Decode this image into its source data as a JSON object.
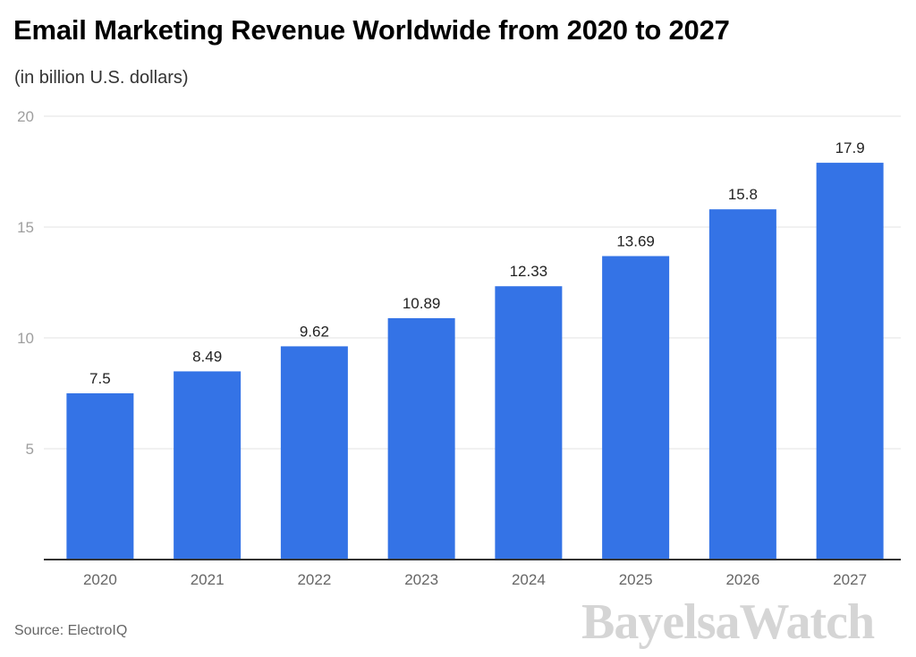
{
  "chart_data": {
    "type": "bar",
    "title": "Email Marketing Revenue Worldwide from 2020 to 2027",
    "subtitle": "(in billion U.S. dollars)",
    "xlabel": "",
    "ylabel": "",
    "categories": [
      "2020",
      "2021",
      "2022",
      "2023",
      "2024",
      "2025",
      "2026",
      "2027"
    ],
    "values": [
      7.5,
      8.49,
      9.62,
      10.89,
      12.33,
      13.69,
      15.8,
      17.9
    ],
    "data_labels": [
      "7.5",
      "8.49",
      "9.62",
      "10.89",
      "12.33",
      "13.69",
      "15.8",
      "17.9"
    ],
    "ylim": [
      0,
      20
    ],
    "yticks": [
      5,
      10,
      15,
      20
    ],
    "grid": true,
    "legend": "none",
    "bar_color": "#3473E6",
    "source": "Source: ElectroIQ"
  },
  "watermark": "BayelsaWatch"
}
